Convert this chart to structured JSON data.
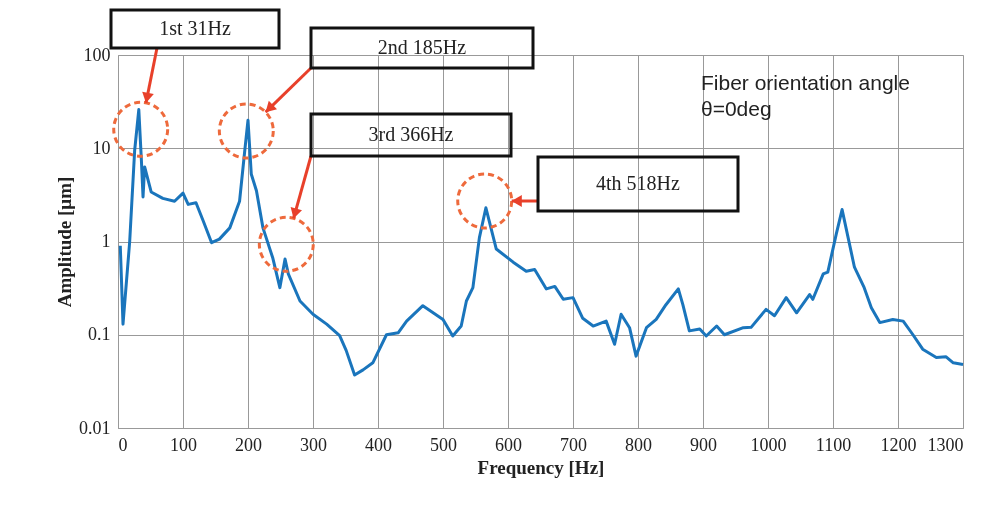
{
  "chart_data": {
    "type": "line",
    "xlabel": "Frequency [Hz]",
    "ylabel": "Amplitude  [μm]",
    "xlim": [
      0,
      1300
    ],
    "xticks": [
      0,
      100,
      200,
      300,
      400,
      500,
      600,
      700,
      800,
      900,
      1000,
      1100,
      1200,
      1300
    ],
    "ylim": [
      0.01,
      100
    ],
    "yticks": [
      0.01,
      0.1,
      1,
      10,
      100
    ],
    "log": true,
    "grid": true,
    "marker": "none",
    "line_style": "solid",
    "series": [
      {
        "color": "#1a75bc",
        "x": [
          3.5,
          7.7,
          18,
          25.6,
          32,
          36,
          38.5,
          41,
          51,
          69,
          87,
          100,
          108,
          120,
          131,
          144,
          156,
          172,
          187,
          195,
          200,
          205,
          213,
          223,
          238,
          249,
          257,
          262,
          280,
          300,
          321,
          341,
          351,
          364,
          377,
          392,
          413,
          431,
          444,
          469,
          500,
          515,
          528,
          536,
          546,
          556,
          566,
          582,
          608,
          628,
          641,
          659,
          672,
          685,
          700,
          715,
          731,
          751,
          764,
          774,
          787,
          797,
          813,
          828,
          843,
          862,
          869,
          879,
          895,
          905,
          921,
          933,
          962,
          974,
          997,
          1010,
          1028,
          1044,
          1064,
          1069,
          1085,
          1092,
          1105,
          1114,
          1133,
          1148,
          1159,
          1172,
          1192,
          1208,
          1223,
          1238,
          1259,
          1274,
          1285,
          1300
        ],
        "values": [
          0.9,
          0.13,
          1.0,
          9.4,
          26,
          7.4,
          3.0,
          6.3,
          3.4,
          2.9,
          2.7,
          3.3,
          2.5,
          2.6,
          1.67,
          0.97,
          1.06,
          1.4,
          2.7,
          9.4,
          20,
          5.3,
          3.5,
          1.4,
          0.67,
          0.32,
          0.65,
          0.45,
          0.23,
          0.166,
          0.13,
          0.098,
          0.068,
          0.037,
          0.042,
          0.05,
          0.1,
          0.105,
          0.14,
          0.205,
          0.146,
          0.097,
          0.124,
          0.23,
          0.32,
          1.1,
          2.3,
          0.83,
          0.6,
          0.48,
          0.5,
          0.31,
          0.33,
          0.24,
          0.25,
          0.15,
          0.124,
          0.14,
          0.079,
          0.166,
          0.119,
          0.059,
          0.119,
          0.146,
          0.21,
          0.31,
          0.21,
          0.11,
          0.115,
          0.097,
          0.124,
          0.1,
          0.119,
          0.12,
          0.187,
          0.16,
          0.25,
          0.172,
          0.27,
          0.24,
          0.45,
          0.47,
          1.2,
          2.2,
          0.53,
          0.32,
          0.195,
          0.135,
          0.146,
          0.14,
          0.1,
          0.07,
          0.057,
          0.058,
          0.05,
          0.048
        ]
      }
    ],
    "annotations": [
      "1st  31Hz",
      "2nd  185Hz",
      "3rd  366Hz",
      "4th  518Hz",
      "Fiber orientation angle\nθ=0deg"
    ]
  }
}
